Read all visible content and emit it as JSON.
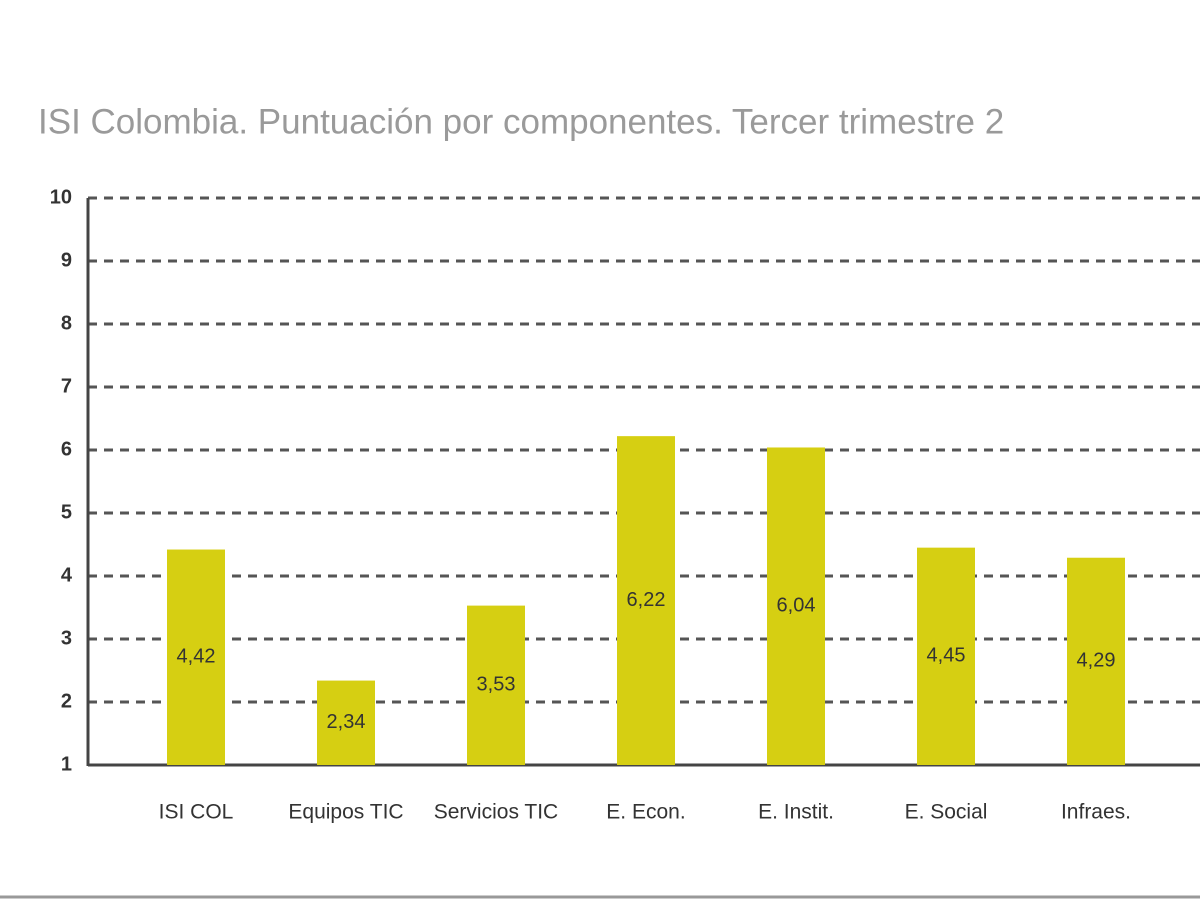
{
  "chart_data": {
    "type": "bar",
    "title": "ISI Colombia. Puntuación por componentes. Tercer trimestre 2",
    "categories": [
      "ISI COL",
      "Equipos TIC",
      "Servicios TIC",
      "E. Econ.",
      "E. Instit.",
      "E. Social",
      "Infraes."
    ],
    "values": [
      4.42,
      2.34,
      3.53,
      6.22,
      6.04,
      4.45,
      4.29
    ],
    "value_labels": [
      "4,42",
      "2,34",
      "3,53",
      "6,22",
      "6,04",
      "4,45",
      "4,29"
    ],
    "color": "#d6cf12",
    "ylim": [
      1,
      10
    ],
    "yticks": [
      1,
      2,
      3,
      4,
      5,
      6,
      7,
      8,
      9,
      10
    ],
    "grid": true
  }
}
